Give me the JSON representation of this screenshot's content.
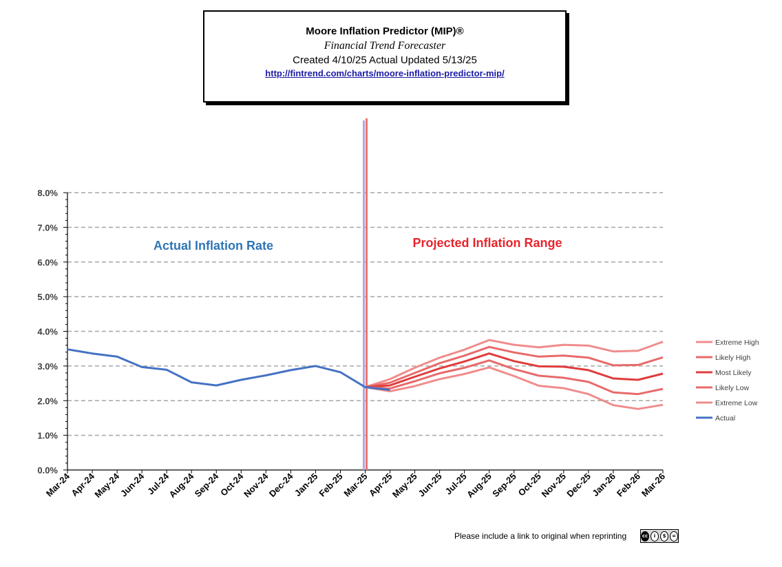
{
  "header": {
    "title": "Moore Inflation Predictor (MIP)®",
    "subtitle": "Financial Trend Forecaster",
    "created": "Created 4/10/25 Actual Updated 5/13/25",
    "url": "http://fintrend.com/charts/moore-inflation-predictor-mip/"
  },
  "footer": {
    "note": "Please include a link to original when reprinting",
    "license_icon": "creative-commons-by-nc-nd-icon"
  },
  "chart_data": {
    "type": "line",
    "title": "",
    "xlabel": "",
    "ylabel": "",
    "ylim": [
      0,
      8
    ],
    "y_ticks": [
      "0.0%",
      "1.0%",
      "2.0%",
      "3.0%",
      "4.0%",
      "5.0%",
      "6.0%",
      "7.0%",
      "8.0%"
    ],
    "grid": "horizontal dashed",
    "legend_position": "right",
    "categories": [
      "Mar-24",
      "Apr-24",
      "May-24",
      "Jun-24",
      "Jul-24",
      "Aug-24",
      "Sep-24",
      "Oct-24",
      "Nov-24",
      "Dec-24",
      "Jan-25",
      "Feb-25",
      "Mar-25",
      "Apr-25",
      "May-25",
      "Jun-25",
      "Jul-25",
      "Aug-25",
      "Sep-25",
      "Oct-25",
      "Nov-25",
      "Dec-25",
      "Jan-26",
      "Feb-26",
      "Mar-26"
    ],
    "annotations": [
      {
        "text": "Actual Inflation Rate",
        "color": "#2e75b6"
      },
      {
        "text": "Projected Inflation Range",
        "color": "#e8232b"
      }
    ],
    "series": [
      {
        "name": "Extreme High",
        "color": "#f08c8c",
        "values": [
          null,
          null,
          null,
          null,
          null,
          null,
          null,
          null,
          null,
          null,
          null,
          null,
          2.39,
          2.62,
          2.95,
          3.24,
          3.47,
          3.75,
          3.61,
          3.54,
          3.61,
          3.59,
          3.42,
          3.44,
          3.7
        ]
      },
      {
        "name": "Likely High",
        "color": "#e86a6a",
        "values": [
          null,
          null,
          null,
          null,
          null,
          null,
          null,
          null,
          null,
          null,
          null,
          null,
          2.39,
          2.52,
          2.8,
          3.08,
          3.3,
          3.55,
          3.39,
          3.27,
          3.3,
          3.24,
          3.02,
          3.03,
          3.25
        ]
      },
      {
        "name": "Most Likely",
        "color": "#e03c3c",
        "values": [
          null,
          null,
          null,
          null,
          null,
          null,
          null,
          null,
          null,
          null,
          null,
          null,
          2.39,
          2.44,
          2.69,
          2.93,
          3.13,
          3.36,
          3.14,
          2.99,
          2.98,
          2.88,
          2.64,
          2.6,
          2.78
        ]
      },
      {
        "name": "Likely Low",
        "color": "#e86a6a",
        "values": [
          null,
          null,
          null,
          null,
          null,
          null,
          null,
          null,
          null,
          null,
          null,
          null,
          2.39,
          2.35,
          2.56,
          2.79,
          2.95,
          3.16,
          2.91,
          2.72,
          2.66,
          2.54,
          2.24,
          2.19,
          2.34
        ]
      },
      {
        "name": "Extreme Low",
        "color": "#f08c8c",
        "values": [
          null,
          null,
          null,
          null,
          null,
          null,
          null,
          null,
          null,
          null,
          null,
          null,
          2.39,
          2.27,
          2.42,
          2.62,
          2.77,
          2.96,
          2.71,
          2.43,
          2.36,
          2.19,
          1.87,
          1.76,
          1.88
        ]
      },
      {
        "name": "Actual",
        "color": "#4472c4",
        "values": [
          3.48,
          3.36,
          3.27,
          2.97,
          2.89,
          2.53,
          2.44,
          2.6,
          2.73,
          2.88,
          3.0,
          2.82,
          2.39,
          2.31,
          null,
          null,
          null,
          null,
          null,
          null,
          null,
          null,
          null,
          null,
          null
        ]
      }
    ],
    "divider_colors": [
      "#b4a7d6",
      "#ec7272"
    ]
  }
}
